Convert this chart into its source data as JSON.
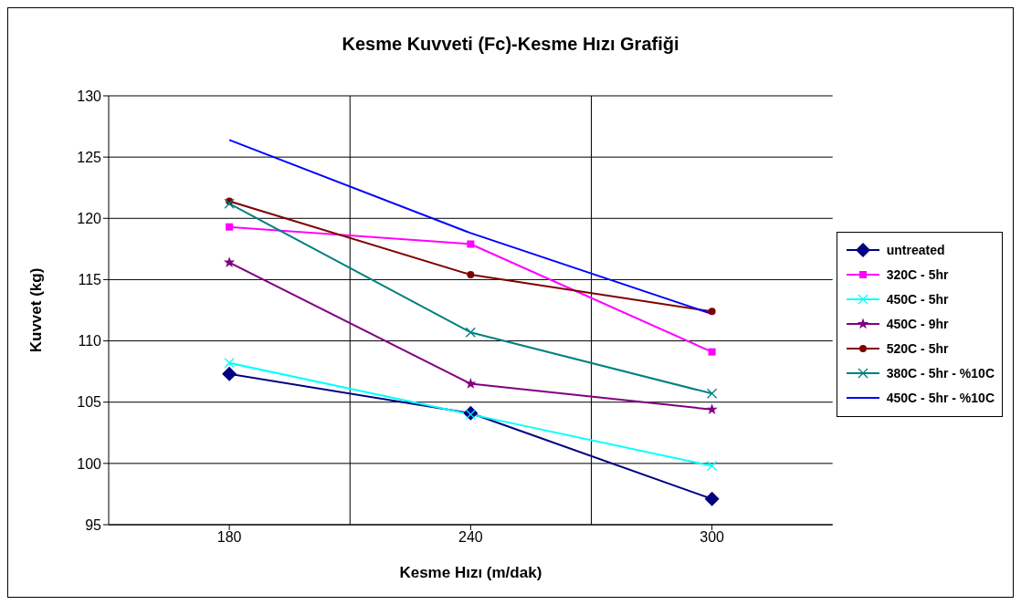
{
  "chart_data": {
    "type": "line",
    "title": "Kesme Kuvveti (Fc)-Kesme Hızı Grafiği",
    "xlabel": "Kesme Hızı (m/dak)",
    "ylabel": "Kuvvet (kg)",
    "categories": [
      "180",
      "240",
      "300"
    ],
    "ylim": [
      95,
      130
    ],
    "yticks": [
      95,
      100,
      105,
      110,
      115,
      120,
      125,
      130
    ],
    "grid": true,
    "legend": "right",
    "series": [
      {
        "name": "untreated",
        "color": "#000080",
        "marker": "diamond",
        "values": [
          107.3,
          104.1,
          97.1
        ]
      },
      {
        "name": "320C - 5hr",
        "color": "#ff00ff",
        "marker": "square",
        "values": [
          119.3,
          117.9,
          109.1
        ]
      },
      {
        "name": "450C - 5hr",
        "color": "#00ffff",
        "marker": "cross",
        "values": [
          108.2,
          104.0,
          99.8
        ]
      },
      {
        "name": "450C - 9hr",
        "color": "#800080",
        "marker": "star",
        "values": [
          116.4,
          106.5,
          104.4
        ]
      },
      {
        "name": "520C - 5hr",
        "color": "#800000",
        "marker": "circle",
        "values": [
          121.4,
          115.4,
          112.4
        ]
      },
      {
        "name": "380C - 5hr - %10C",
        "color": "#008080",
        "marker": "cross",
        "values": [
          121.2,
          110.7,
          105.7
        ]
      },
      {
        "name": "450C - 5hr - %10C",
        "color": "#0000ff",
        "marker": "none",
        "values": [
          126.4,
          118.8,
          112.2
        ]
      }
    ]
  }
}
